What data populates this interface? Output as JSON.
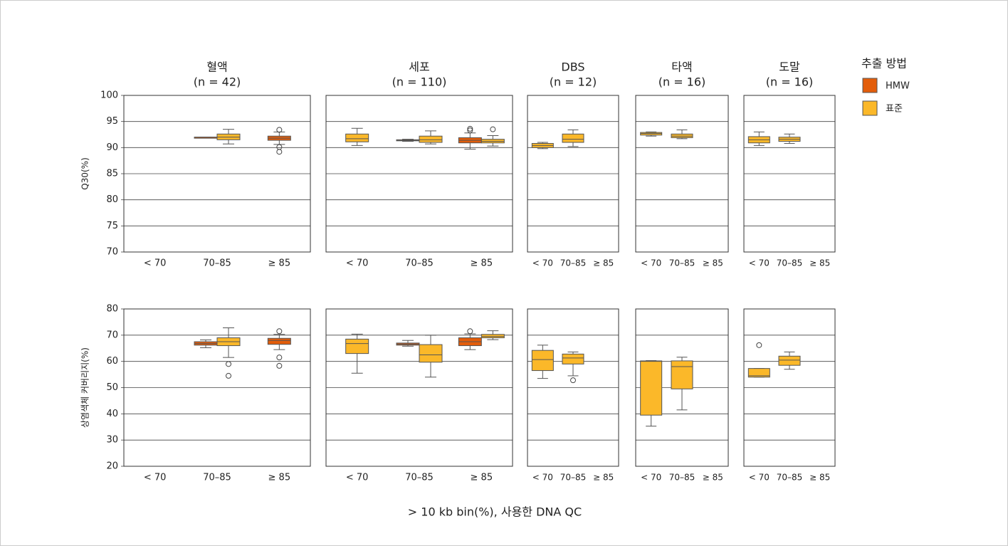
{
  "chart_data": {
    "type": "box",
    "xlabel": "> 10 kb bin(%), 사용한 DNA QC",
    "legend_title": "추출 방법",
    "grid": true,
    "categories": [
      "< 70",
      "70–85",
      "≥ 85"
    ],
    "series": [
      {
        "name": "HMW",
        "color": "#e35d0a"
      },
      {
        "name": "표준",
        "color": "#fbb829"
      }
    ],
    "columns": [
      {
        "title": "혈액",
        "subtitle": "(n = 42)"
      },
      {
        "title": "세포",
        "subtitle": "(n = 110)"
      },
      {
        "title": "DBS",
        "subtitle": "(n = 12)"
      },
      {
        "title": "타액",
        "subtitle": "(n = 16)"
      },
      {
        "title": "도말",
        "subtitle": "(n = 16)"
      }
    ],
    "rows": [
      {
        "ylabel": "Q30(%)",
        "ylim": [
          70,
          100
        ],
        "yticks": [
          70,
          75,
          80,
          85,
          90,
          95,
          100
        ],
        "panels": [
          {
            "boxes": [
              [
                null,
                null
              ],
              [
                {
                  "whisker_low": 92,
                  "q1": 92,
                  "median": 92,
                  "q3": 92,
                  "whisker_high": 92,
                  "outliers": []
                },
                {
                  "whisker_low": 90.7,
                  "q1": 91.5,
                  "median": 92,
                  "q3": 92.6,
                  "whisker_high": 93.5,
                  "outliers": []
                }
              ],
              [
                {
                  "whisker_low": 90.6,
                  "q1": 91.4,
                  "median": 91.8,
                  "q3": 92.2,
                  "whisker_high": 93,
                  "outliers": [
                    93.4,
                    90.1,
                    89.2
                  ]
                },
                null
              ]
            ]
          },
          {
            "boxes": [
              [
                null,
                {
                  "whisker_low": 90.4,
                  "q1": 91.1,
                  "median": 91.7,
                  "q3": 92.6,
                  "whisker_high": 93.7,
                  "outliers": []
                }
              ],
              [
                {
                  "whisker_low": 91.2,
                  "q1": 91.3,
                  "median": 91.4,
                  "q3": 91.5,
                  "whisker_high": 91.6,
                  "outliers": []
                },
                {
                  "whisker_low": 90.7,
                  "q1": 91,
                  "median": 91.5,
                  "q3": 92.2,
                  "whisker_high": 93.2,
                  "outliers": []
                }
              ],
              [
                {
                  "whisker_low": 89.7,
                  "q1": 90.9,
                  "median": 91.4,
                  "q3": 91.9,
                  "whisker_high": 92.8,
                  "outliers": [
                    93.3,
                    93.6
                  ]
                },
                {
                  "whisker_low": 90.3,
                  "q1": 90.9,
                  "median": 91.2,
                  "q3": 91.6,
                  "whisker_high": 92.3,
                  "outliers": [
                    93.5
                  ]
                }
              ]
            ]
          },
          {
            "boxes": [
              [
                null,
                {
                  "whisker_low": 89.8,
                  "q1": 90,
                  "median": 90.4,
                  "q3": 90.8,
                  "whisker_high": 91,
                  "outliers": []
                }
              ],
              [
                null,
                {
                  "whisker_low": 90.2,
                  "q1": 91,
                  "median": 91.6,
                  "q3": 92.6,
                  "whisker_high": 93.4,
                  "outliers": []
                }
              ],
              [
                null,
                null
              ]
            ]
          },
          {
            "boxes": [
              [
                null,
                {
                  "whisker_low": 92.2,
                  "q1": 92.4,
                  "median": 92.7,
                  "q3": 92.9,
                  "whisker_high": 93,
                  "outliers": []
                }
              ],
              [
                null,
                {
                  "whisker_low": 91.7,
                  "q1": 91.9,
                  "median": 92.2,
                  "q3": 92.6,
                  "whisker_high": 93.4,
                  "outliers": []
                }
              ],
              [
                null,
                null
              ]
            ]
          },
          {
            "boxes": [
              [
                null,
                {
                  "whisker_low": 90.4,
                  "q1": 90.9,
                  "median": 91.5,
                  "q3": 92.1,
                  "whisker_high": 93,
                  "outliers": []
                }
              ],
              [
                null,
                {
                  "whisker_low": 90.8,
                  "q1": 91.2,
                  "median": 91.6,
                  "q3": 92,
                  "whisker_high": 92.6,
                  "outliers": []
                }
              ],
              [
                null,
                null
              ]
            ]
          }
        ]
      },
      {
        "ylabel": "상염색체 커버리지(%)",
        "ylim": [
          20,
          80
        ],
        "yticks": [
          20,
          30,
          40,
          50,
          60,
          70,
          80
        ],
        "panels": [
          {
            "boxes": [
              [
                null,
                null
              ],
              [
                {
                  "whisker_low": 65.2,
                  "q1": 66.2,
                  "median": 66.8,
                  "q3": 67.5,
                  "whisker_high": 68.2,
                  "outliers": []
                },
                {
                  "whisker_low": 61.5,
                  "q1": 66,
                  "median": 67.5,
                  "q3": 69,
                  "whisker_high": 72.8,
                  "outliers": [
                    59,
                    54.5
                  ]
                }
              ],
              [
                {
                  "whisker_low": 64.5,
                  "q1": 66.5,
                  "median": 68,
                  "q3": 68.8,
                  "whisker_high": 70.3,
                  "outliers": [
                    71.5,
                    61.5,
                    58.3
                  ]
                },
                null
              ]
            ]
          },
          {
            "boxes": [
              [
                null,
                {
                  "whisker_low": 55.5,
                  "q1": 63,
                  "median": 66.8,
                  "q3": 68.5,
                  "whisker_high": 70.4,
                  "outliers": []
                }
              ],
              [
                {
                  "whisker_low": 65.8,
                  "q1": 66.2,
                  "median": 66.6,
                  "q3": 67,
                  "whisker_high": 68,
                  "outliers": []
                },
                {
                  "whisker_low": 54,
                  "q1": 59.7,
                  "median": 62.5,
                  "q3": 66.4,
                  "whisker_high": 70,
                  "outliers": []
                }
              ],
              [
                {
                  "whisker_low": 64.5,
                  "q1": 66,
                  "median": 67.5,
                  "q3": 69,
                  "whisker_high": 70.5,
                  "outliers": [
                    71.5
                  ]
                },
                {
                  "whisker_low": 68.3,
                  "q1": 69,
                  "median": 69.5,
                  "q3": 70.3,
                  "whisker_high": 71.7,
                  "outliers": []
                }
              ]
            ]
          },
          {
            "boxes": [
              [
                null,
                {
                  "whisker_low": 53.5,
                  "q1": 56.5,
                  "median": 60.7,
                  "q3": 64.2,
                  "whisker_high": 66.2,
                  "outliers": []
                }
              ],
              [
                null,
                {
                  "whisker_low": 54.5,
                  "q1": 59,
                  "median": 61.3,
                  "q3": 62.8,
                  "whisker_high": 63.6,
                  "outliers": [
                    52.8
                  ]
                }
              ],
              [
                null,
                null
              ]
            ]
          },
          {
            "boxes": [
              [
                null,
                {
                  "whisker_low": 35.3,
                  "q1": 39.5,
                  "median": 60,
                  "q3": 60.2,
                  "whisker_high": 60.3,
                  "outliers": []
                }
              ],
              [
                null,
                {
                  "whisker_low": 41.5,
                  "q1": 49.5,
                  "median": 58,
                  "q3": 60.2,
                  "whisker_high": 61.6,
                  "outliers": []
                }
              ],
              [
                null,
                null
              ]
            ]
          },
          {
            "boxes": [
              [
                null,
                {
                  "whisker_low": 54,
                  "q1": 54,
                  "median": 54.5,
                  "q3": 57.3,
                  "whisker_high": 57.3,
                  "outliers": [
                    66.2
                  ]
                }
              ],
              [
                null,
                {
                  "whisker_low": 57,
                  "q1": 58.5,
                  "median": 60.5,
                  "q3": 62,
                  "whisker_high": 63.6,
                  "outliers": []
                }
              ],
              [
                null,
                null
              ]
            ]
          }
        ]
      }
    ]
  }
}
